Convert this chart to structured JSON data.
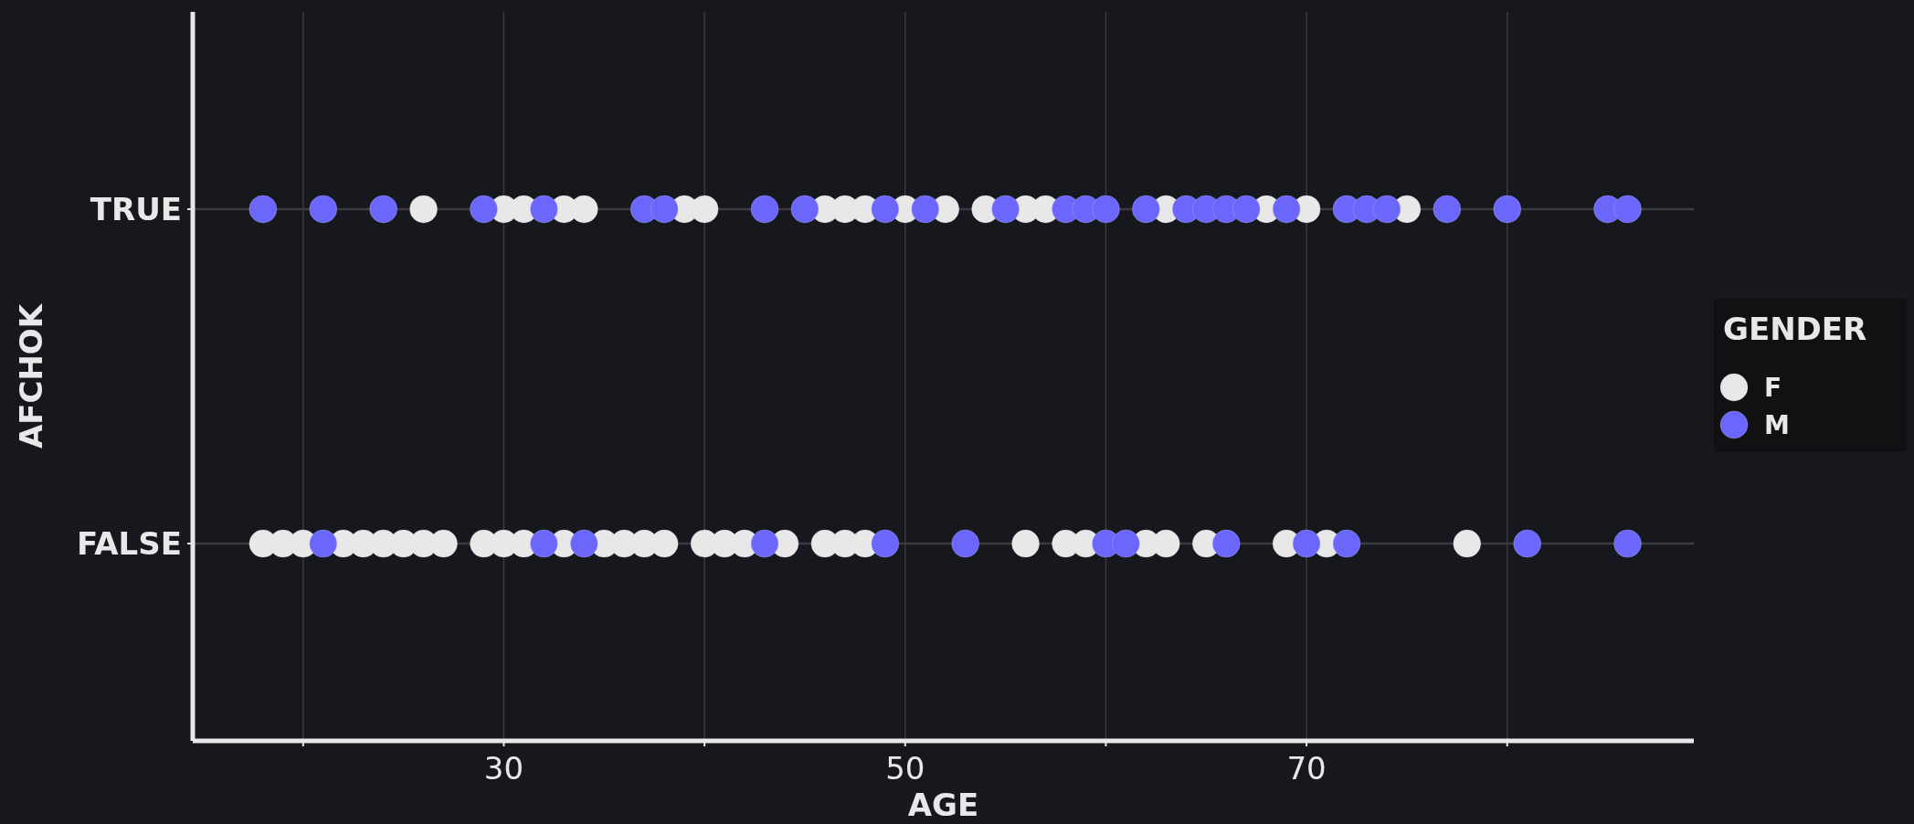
{
  "chart_data": {
    "type": "scatter",
    "orientation": "horizontal",
    "xlabel": "AGE",
    "ylabel": "AFCHOK",
    "legend_title": "GENDER",
    "categories": [
      "TRUE",
      "FALSE"
    ],
    "xlim": [
      14.5,
      89.3
    ],
    "xticks": [
      {
        "value": 20,
        "label": null
      },
      30,
      {
        "value": 40,
        "label": null
      },
      50,
      {
        "value": 60,
        "label": null
      },
      70,
      {
        "value": 80,
        "label": null
      }
    ],
    "grid": true,
    "legend": "right",
    "marker": "circle",
    "series": [
      {
        "name": "F",
        "color": "#e8e8e8",
        "x": [
          "TRUE",
          "TRUE",
          "TRUE",
          "TRUE",
          "TRUE",
          "TRUE",
          "TRUE",
          "TRUE",
          "TRUE",
          "TRUE",
          "TRUE",
          "TRUE",
          "TRUE",
          "TRUE",
          "TRUE",
          "TRUE",
          "TRUE",
          "TRUE",
          "TRUE",
          "FALSE",
          "FALSE",
          "FALSE",
          "FALSE",
          "FALSE",
          "FALSE",
          "FALSE",
          "FALSE",
          "FALSE",
          "FALSE",
          "FALSE",
          "FALSE",
          "FALSE",
          "FALSE",
          "FALSE",
          "FALSE",
          "FALSE",
          "FALSE",
          "FALSE",
          "FALSE",
          "FALSE",
          "FALSE",
          "FALSE",
          "FALSE",
          "FALSE",
          "FALSE",
          "FALSE",
          "FALSE",
          "FALSE",
          "FALSE",
          "FALSE",
          "FALSE",
          "FALSE"
        ],
        "values": [
          26,
          30,
          31,
          33,
          34,
          39,
          40,
          46,
          47,
          48,
          50,
          52,
          54,
          56,
          57,
          63,
          68,
          70,
          75,
          18,
          19,
          20,
          22,
          23,
          24,
          25,
          26,
          27,
          29,
          30,
          31,
          33,
          35,
          36,
          37,
          38,
          40,
          41,
          42,
          44,
          46,
          47,
          48,
          56,
          58,
          59,
          62,
          63,
          65,
          69,
          71,
          78
        ]
      },
      {
        "name": "M",
        "color": "#6b67fd",
        "x": [
          "TRUE",
          "TRUE",
          "TRUE",
          "TRUE",
          "TRUE",
          "TRUE",
          "TRUE",
          "TRUE",
          "TRUE",
          "TRUE",
          "TRUE",
          "TRUE",
          "TRUE",
          "TRUE",
          "TRUE",
          "TRUE",
          "TRUE",
          "TRUE",
          "TRUE",
          "TRUE",
          "TRUE",
          "TRUE",
          "TRUE",
          "TRUE",
          "TRUE",
          "TRUE",
          "TRUE",
          "TRUE",
          "FALSE",
          "FALSE",
          "FALSE",
          "FALSE",
          "FALSE",
          "FALSE",
          "FALSE",
          "FALSE",
          "FALSE",
          "FALSE",
          "FALSE",
          "FALSE",
          "FALSE"
        ],
        "values": [
          18,
          21,
          24,
          29,
          32,
          37,
          38,
          43,
          45,
          49,
          51,
          55,
          58,
          59,
          60,
          62,
          64,
          65,
          66,
          67,
          69,
          72,
          73,
          74,
          77,
          80,
          85,
          86,
          21,
          32,
          34,
          43,
          49,
          53,
          60,
          61,
          66,
          70,
          72,
          81,
          86
        ]
      }
    ]
  }
}
